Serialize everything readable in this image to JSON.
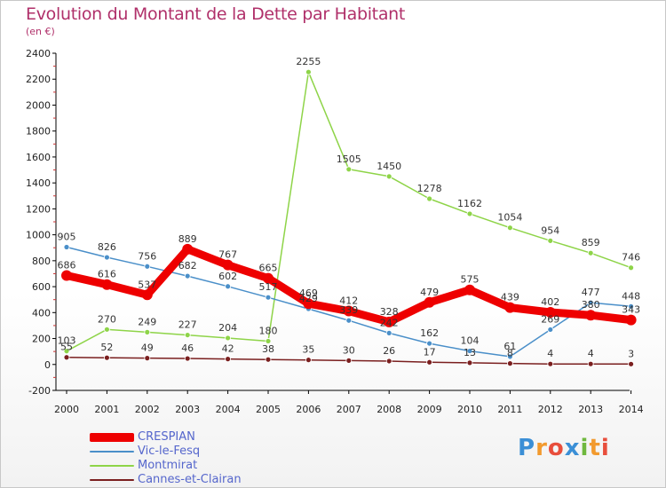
{
  "page": {
    "title": "Evolution du Montant de la Dette par Habitant",
    "subtitle": "(en €)"
  },
  "logo": {
    "text": "Proxiti"
  },
  "chart_data": {
    "type": "line",
    "title": "Evolution du Montant de la Dette par Habitant",
    "subtitle": "(en €)",
    "x": [
      2000,
      2001,
      2002,
      2003,
      2004,
      2005,
      2006,
      2007,
      2008,
      2009,
      2010,
      2011,
      2012,
      2013,
      2014
    ],
    "ylim": [
      -200,
      2400
    ],
    "yticks": [
      -200,
      0,
      200,
      400,
      600,
      800,
      1000,
      1200,
      1400,
      1600,
      1800,
      2000,
      2200,
      2400
    ],
    "grid": false,
    "legend_position": "bottom-left",
    "series": [
      {
        "name": "CRESPIAN",
        "color": "#ee0000",
        "values": [
          686,
          616,
          537,
          889,
          767,
          665,
          469,
          412,
          328,
          479,
          575,
          439,
          402,
          380,
          343
        ]
      },
      {
        "name": "Vic-le-Fesq",
        "color": "#4a8fc9",
        "values": [
          905,
          826,
          756,
          682,
          602,
          517,
          429,
          339,
          242,
          162,
          104,
          61,
          269,
          477,
          448
        ]
      },
      {
        "name": "Montmirat",
        "color": "#8ed448",
        "values": [
          103,
          270,
          249,
          227,
          204,
          180,
          2255,
          1505,
          1450,
          1278,
          1162,
          1054,
          954,
          859,
          746
        ]
      },
      {
        "name": "Cannes-et-Clairan",
        "color": "#7a1f1f",
        "values": [
          55,
          52,
          49,
          46,
          42,
          38,
          35,
          30,
          26,
          17,
          13,
          8,
          4,
          4,
          3
        ]
      }
    ]
  }
}
